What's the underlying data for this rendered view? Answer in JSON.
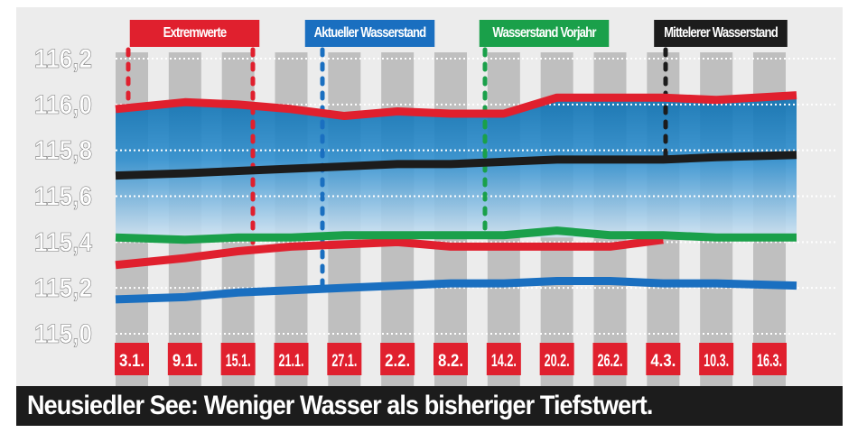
{
  "chart_data": {
    "type": "line",
    "title": "",
    "caption": "Neusiedler See: Weniger Wasser als bisheriger Tiefstwert.",
    "categories": [
      "3.1.",
      "9.1.",
      "15.1.",
      "21.1.",
      "27.1.",
      "2.2.",
      "8.2.",
      "14.2.",
      "20.2.",
      "26.2.",
      "4.3.",
      "10.3.",
      "16.3."
    ],
    "ylim": [
      115.0,
      116.2
    ],
    "yticks": [
      "115,0",
      "115,2",
      "115,4",
      "115,6",
      "115,8",
      "116,0",
      "116,2"
    ],
    "grid": true,
    "legend_position": "top",
    "legend": [
      "Extremwerte",
      "Aktueller Wasserstand",
      "Wasserstand Vorjahr",
      "Mittelerer Wasserstand"
    ],
    "series": [
      {
        "name": "Extremwerte",
        "role": "max",
        "color": "#e0202e",
        "values": [
          115.98,
          116.01,
          116.0,
          115.98,
          115.95,
          115.97,
          115.96,
          115.96,
          116.03,
          116.03,
          116.03,
          116.02,
          116.04
        ]
      },
      {
        "name": "Extremwerte",
        "role": "min",
        "color": "#e0202e",
        "values": [
          115.3,
          115.33,
          115.36,
          115.38,
          115.39,
          115.4,
          115.38,
          115.38,
          115.38,
          115.38,
          115.41,
          null,
          null
        ]
      },
      {
        "name": "Aktueller Wasserstand",
        "color": "#1a6fc0",
        "values": [
          115.15,
          115.16,
          115.18,
          115.19,
          115.2,
          115.21,
          115.22,
          115.22,
          115.23,
          115.23,
          115.22,
          115.22,
          115.21
        ]
      },
      {
        "name": "Wasserstand Vorjahr",
        "color": "#1aa04a",
        "values": [
          115.42,
          115.41,
          115.42,
          115.42,
          115.43,
          115.43,
          115.43,
          115.43,
          115.45,
          115.43,
          115.43,
          115.42,
          115.42
        ]
      },
      {
        "name": "Mittelerer Wasserstand",
        "color": "#1c1c1c",
        "values": [
          115.69,
          115.7,
          115.71,
          115.72,
          115.73,
          115.74,
          115.74,
          115.75,
          115.76,
          115.76,
          115.76,
          115.77,
          115.78
        ]
      }
    ]
  }
}
